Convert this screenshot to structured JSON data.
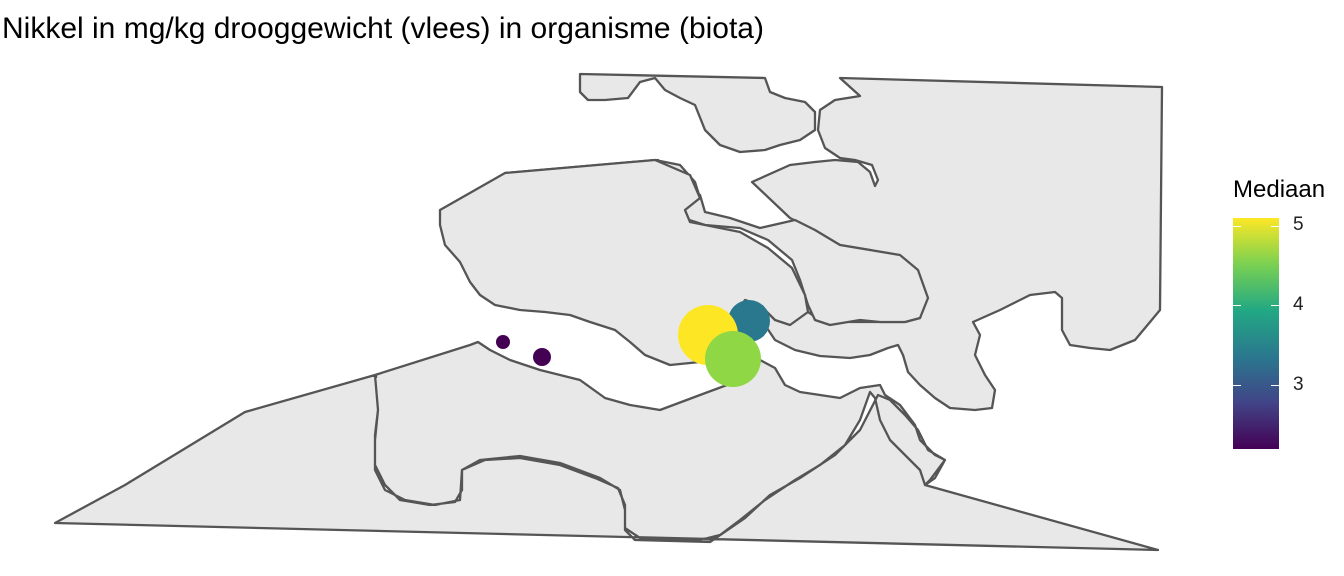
{
  "title": "Nikkel in mg/kg drooggewicht (vlees) in organisme (biota)",
  "legend": {
    "title": "Mediaan",
    "ticks": [
      "5",
      "4",
      "3"
    ],
    "colors": [
      "#440154",
      "#414487",
      "#2a788e",
      "#22a884",
      "#7ad151",
      "#fde725"
    ]
  },
  "sample_points": [
    {
      "name": "point-west-small",
      "median": 2.2,
      "color": "#440154"
    },
    {
      "name": "point-west-medium",
      "median": 2.3,
      "color": "#440154"
    },
    {
      "name": "point-teal",
      "median": 3.3,
      "color": "#2a788e"
    },
    {
      "name": "point-yellow",
      "median": 5.1,
      "color": "#fde725"
    },
    {
      "name": "point-green",
      "median": 4.7,
      "color": "#8fd744"
    }
  ]
}
